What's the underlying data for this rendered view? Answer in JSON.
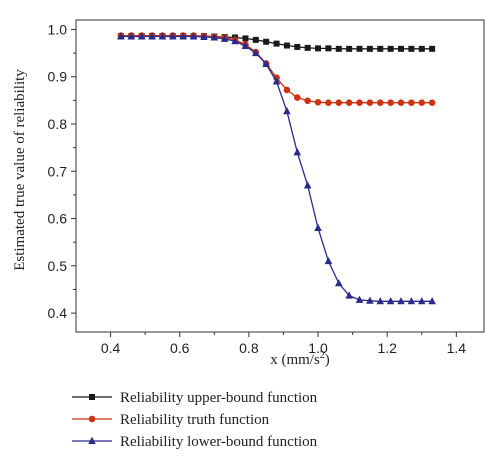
{
  "chart_data": {
    "type": "line",
    "xlabel": "x (mm/s",
    "xlabel_sup": "2",
    "xlabel_close": ")",
    "ylabel": "Estimated true value of reliability",
    "xlim": [
      0.3,
      1.48
    ],
    "ylim": [
      0.36,
      1.02
    ],
    "x_ticks": [
      0.4,
      0.6,
      0.8,
      1.0,
      1.2,
      1.4
    ],
    "x_tick_labels": [
      "0.4",
      "0.6",
      "0.8",
      "1.0",
      "1.2",
      "1.4"
    ],
    "y_ticks": [
      0.4,
      0.5,
      0.6,
      0.7,
      0.8,
      0.9,
      1.0
    ],
    "y_tick_labels": [
      "0.4",
      "0.5",
      "0.6",
      "0.7",
      "0.8",
      "0.9",
      "1.0"
    ],
    "grid": false,
    "legend_position": "below",
    "x": [
      0.43,
      0.46,
      0.49,
      0.52,
      0.55,
      0.58,
      0.61,
      0.64,
      0.67,
      0.7,
      0.73,
      0.76,
      0.79,
      0.82,
      0.85,
      0.88,
      0.91,
      0.94,
      0.97,
      1.0,
      1.03,
      1.06,
      1.09,
      1.12,
      1.15,
      1.18,
      1.21,
      1.24,
      1.27,
      1.3,
      1.33
    ],
    "series": [
      {
        "name": "Reliability upper-bound function",
        "color": "#1a1a1a",
        "marker": "square",
        "values": [
          0.986,
          0.986,
          0.986,
          0.986,
          0.986,
          0.986,
          0.986,
          0.986,
          0.986,
          0.985,
          0.984,
          0.983,
          0.981,
          0.978,
          0.974,
          0.97,
          0.966,
          0.963,
          0.961,
          0.96,
          0.96,
          0.959,
          0.959,
          0.959,
          0.959,
          0.959,
          0.959,
          0.959,
          0.959,
          0.959,
          0.959
        ]
      },
      {
        "name": "Reliability truth function",
        "color": "#cc3311",
        "marker": "circle",
        "values": [
          0.987,
          0.987,
          0.987,
          0.987,
          0.987,
          0.987,
          0.987,
          0.987,
          0.986,
          0.985,
          0.983,
          0.978,
          0.968,
          0.952,
          0.928,
          0.898,
          0.872,
          0.856,
          0.849,
          0.846,
          0.845,
          0.845,
          0.845,
          0.845,
          0.845,
          0.845,
          0.845,
          0.845,
          0.845,
          0.845,
          0.845
        ]
      },
      {
        "name": "Reliability lower-bound function",
        "color": "#2a2a8a",
        "marker": "triangle",
        "values": [
          0.985,
          0.985,
          0.985,
          0.985,
          0.985,
          0.985,
          0.985,
          0.985,
          0.984,
          0.983,
          0.98,
          0.975,
          0.965,
          0.95,
          0.927,
          0.89,
          0.827,
          0.74,
          0.67,
          0.58,
          0.51,
          0.463,
          0.437,
          0.428,
          0.426,
          0.425,
          0.425,
          0.425,
          0.425,
          0.425,
          0.425
        ]
      }
    ]
  }
}
